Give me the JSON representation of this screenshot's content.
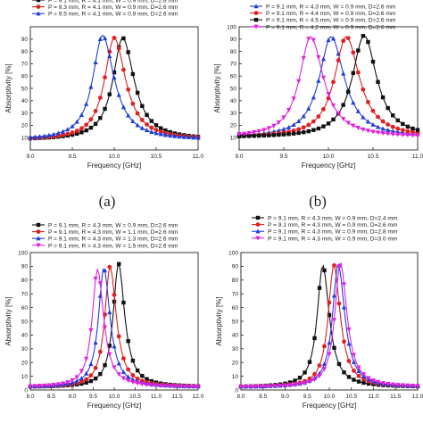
{
  "figure": {
    "captions": [
      "(a)",
      "(b)"
    ]
  },
  "chart_data": [
    {
      "type": "line",
      "panel": "a",
      "xlabel": "Frequency [GHz]",
      "ylabel": "Absorptivity [%]",
      "xlim": [
        9.0,
        11.0
      ],
      "ylim": [
        0,
        100
      ],
      "xticks": [
        "9.0",
        "9.5",
        "10.0",
        "10.5",
        "11.0"
      ],
      "yticks": [
        "10",
        "20",
        "30",
        "40",
        "50",
        "60",
        "70",
        "80",
        "90"
      ],
      "legend_position": "top",
      "series": [
        {
          "name": "P = 9.1 mm, R = 4.1 mm, W = 0.9 mm, D=2.6 mm",
          "color": "#111111",
          "marker": "square",
          "peak_x": 10.1,
          "peak_y": 91,
          "base": 8,
          "hw_lo": 0.28,
          "hw_hi": 0.33
        },
        {
          "name": "P = 9.3 mm, R = 4.1 mm, W = 0.9 mm, D=2.6 mm",
          "color": "#e02020",
          "marker": "circle",
          "peak_x": 10.0,
          "peak_y": 91,
          "base": 8,
          "hw_lo": 0.28,
          "hw_hi": 0.33
        },
        {
          "name": "P = 9.5 mm, R = 4.1 mm, W = 0.9 mm, D=2.6 mm",
          "color": "#1f3fd8",
          "marker": "triangle",
          "peak_x": 9.86,
          "peak_y": 93,
          "base": 8,
          "hw_lo": 0.28,
          "hw_hi": 0.34
        }
      ]
    },
    {
      "type": "line",
      "panel": "b",
      "xlabel": "Frequency [GHz]",
      "ylabel": "Absorptivity [%]",
      "xlim": [
        9.0,
        11.0
      ],
      "ylim": [
        0,
        100
      ],
      "xticks": [
        "9.0",
        "9.5",
        "10.0",
        "10.5",
        "11.0"
      ],
      "yticks": [
        "10",
        "20",
        "30",
        "40",
        "50",
        "60",
        "70",
        "80",
        "90",
        "100"
      ],
      "legend_position": "top",
      "series": [
        {
          "name": "P = 9.1 mm, R = 4.3 mm, W = 0.9 mm, D=2.6 mm",
          "color": "#1f3fd8",
          "marker": "triangle",
          "peak_x": 10.03,
          "peak_y": 92,
          "base": 10,
          "hw_lo": 0.32,
          "hw_hi": 0.36
        },
        {
          "name": "P = 9.1 mm, R = 4.4 mm, W = 0.9 mm, D=2.6 mm",
          "color": "#e02020",
          "marker": "circle",
          "peak_x": 10.2,
          "peak_y": 92,
          "base": 10,
          "hw_lo": 0.32,
          "hw_hi": 0.36
        },
        {
          "name": "P = 9.1 mm, R = 4.5 mm, W = 0.9 mm, D=2.6 mm",
          "color": "#111111",
          "marker": "square",
          "peak_x": 10.4,
          "peak_y": 93,
          "base": 10,
          "hw_lo": 0.32,
          "hw_hi": 0.34
        },
        {
          "name": "P = 9.1 mm, R = 4.2 mm, W = 0.9 mm, D=2.6 mm",
          "color": "#e020e0",
          "marker": "triangle-down",
          "peak_x": 9.8,
          "peak_y": 92,
          "base": 10,
          "hw_lo": 0.3,
          "hw_hi": 0.35
        }
      ]
    },
    {
      "type": "line",
      "panel": "c",
      "xlabel": "Frequency [GHz]",
      "ylabel": "Absorptivity [%]",
      "xlim": [
        8.0,
        12.0
      ],
      "ylim": [
        0,
        100
      ],
      "xticks": [
        "8.0",
        "8.5",
        "9.0",
        "9.5",
        "10.0",
        "10.5",
        "11.0",
        "11.5",
        "12.0"
      ],
      "yticks": [
        "0",
        "10",
        "20",
        "30",
        "40",
        "50",
        "60",
        "70",
        "80",
        "90",
        "100"
      ],
      "legend_position": "top",
      "series": [
        {
          "name": "P = 9.1 mm, R = 4.3 mm, W = 0.9 mm, D=2.6 mm",
          "color": "#111111",
          "marker": "square",
          "peak_x": 10.1,
          "peak_y": 92,
          "base": 2,
          "hw_lo": 0.3,
          "hw_hi": 0.36
        },
        {
          "name": "P = 9.1 mm, R = 4.3 mm, W = 1.1 mm, D=2.6 mm",
          "color": "#e02020",
          "marker": "circle",
          "peak_x": 9.9,
          "peak_y": 90,
          "base": 2,
          "hw_lo": 0.3,
          "hw_hi": 0.36
        },
        {
          "name": "P = 9.1 mm, R = 4.3 mm, W = 1.3 mm, D=2.6 mm",
          "color": "#1f3fd8",
          "marker": "triangle",
          "peak_x": 9.75,
          "peak_y": 89,
          "base": 2,
          "hw_lo": 0.3,
          "hw_hi": 0.36
        },
        {
          "name": "P = 9.1 mm, R = 4.3 mm, W = 1.5 mm, D=2.6 mm",
          "color": "#e020e0",
          "marker": "triangle-down",
          "peak_x": 9.6,
          "peak_y": 88,
          "base": 2,
          "hw_lo": 0.3,
          "hw_hi": 0.36
        }
      ]
    },
    {
      "type": "line",
      "panel": "d",
      "xlabel": "Frequency [GHz]",
      "ylabel": "Absorptivity [%]",
      "xlim": [
        8.0,
        12.0
      ],
      "ylim": [
        0,
        100
      ],
      "xticks": [
        "8.0",
        "8.5",
        "9.0",
        "9.5",
        "10.0",
        "10.5",
        "11.0",
        "11.5",
        "12.0"
      ],
      "yticks": [
        "0",
        "10",
        "20",
        "30",
        "40",
        "50",
        "60",
        "70",
        "80",
        "90",
        "100"
      ],
      "legend_position": "top",
      "series": [
        {
          "name": "P = 9.1 mm, R = 4.3 mm, W = 0.9 mm, D=2.4 mm",
          "color": "#111111",
          "marker": "square",
          "peak_x": 9.85,
          "peak_y": 91,
          "base": 2,
          "hw_lo": 0.3,
          "hw_hi": 0.36
        },
        {
          "name": "P = 9.1 mm, R = 4.3 mm, W = 0.9 mm, D=2.6 mm",
          "color": "#e02020",
          "marker": "circle",
          "peak_x": 10.1,
          "peak_y": 91,
          "base": 2,
          "hw_lo": 0.3,
          "hw_hi": 0.36
        },
        {
          "name": "P = 9.1 mm, R = 4.3 mm, W = 0.9 mm, D=2.8 mm",
          "color": "#1f3fd8",
          "marker": "triangle",
          "peak_x": 10.2,
          "peak_y": 92,
          "base": 2,
          "hw_lo": 0.3,
          "hw_hi": 0.36
        },
        {
          "name": "P = 9.1 mm, R = 4.3 mm, W = 0.9 mm, D=3.0 mm",
          "color": "#e020e0",
          "marker": "triangle-down",
          "peak_x": 10.25,
          "peak_y": 93,
          "base": 2,
          "hw_lo": 0.3,
          "hw_hi": 0.36
        }
      ]
    }
  ]
}
